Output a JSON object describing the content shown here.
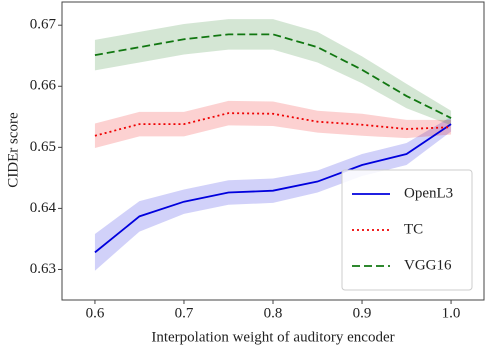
{
  "chart_data": {
    "type": "line",
    "xlabel": "Interpolation weight of auditory encoder",
    "ylabel": "CIDEr score",
    "x": [
      0.6,
      0.65,
      0.7,
      0.75,
      0.8,
      0.85,
      0.9,
      0.95,
      1.0
    ],
    "series": [
      {
        "name": "OpenL3",
        "color": "#0000dd",
        "style": "solid",
        "values": [
          0.6328,
          0.6387,
          0.6411,
          0.6426,
          0.6429,
          0.6444,
          0.6471,
          0.6489,
          0.6538
        ],
        "errors": [
          0.003,
          0.0025,
          0.002,
          0.002,
          0.002,
          0.0018,
          0.0018,
          0.0018,
          0.0012
        ]
      },
      {
        "name": "TC",
        "color": "#ee0000",
        "style": "dotted",
        "values": [
          0.6519,
          0.6538,
          0.6538,
          0.6556,
          0.6555,
          0.6542,
          0.6537,
          0.653,
          0.6533
        ],
        "errors": [
          0.002,
          0.002,
          0.002,
          0.002,
          0.002,
          0.0018,
          0.0018,
          0.0015,
          0.0012
        ]
      },
      {
        "name": "VGG16",
        "color": "#117711",
        "style": "dashed",
        "values": [
          0.6651,
          0.6664,
          0.6677,
          0.6685,
          0.6685,
          0.6664,
          0.6627,
          0.6584,
          0.6548
        ],
        "errors": [
          0.0025,
          0.0025,
          0.0025,
          0.0025,
          0.0025,
          0.0025,
          0.0022,
          0.002,
          0.0012
        ]
      }
    ],
    "xlim": [
      0.563,
      1.037
    ],
    "ylim": [
      0.625,
      0.6738
    ],
    "xticks": [
      0.6,
      0.7,
      0.8,
      0.9,
      {
        "value": 1.0,
        "label": "1.0"
      }
    ],
    "yticks": [
      0.63,
      0.64,
      0.65,
      0.66,
      0.67
    ],
    "legend": "lower right"
  }
}
